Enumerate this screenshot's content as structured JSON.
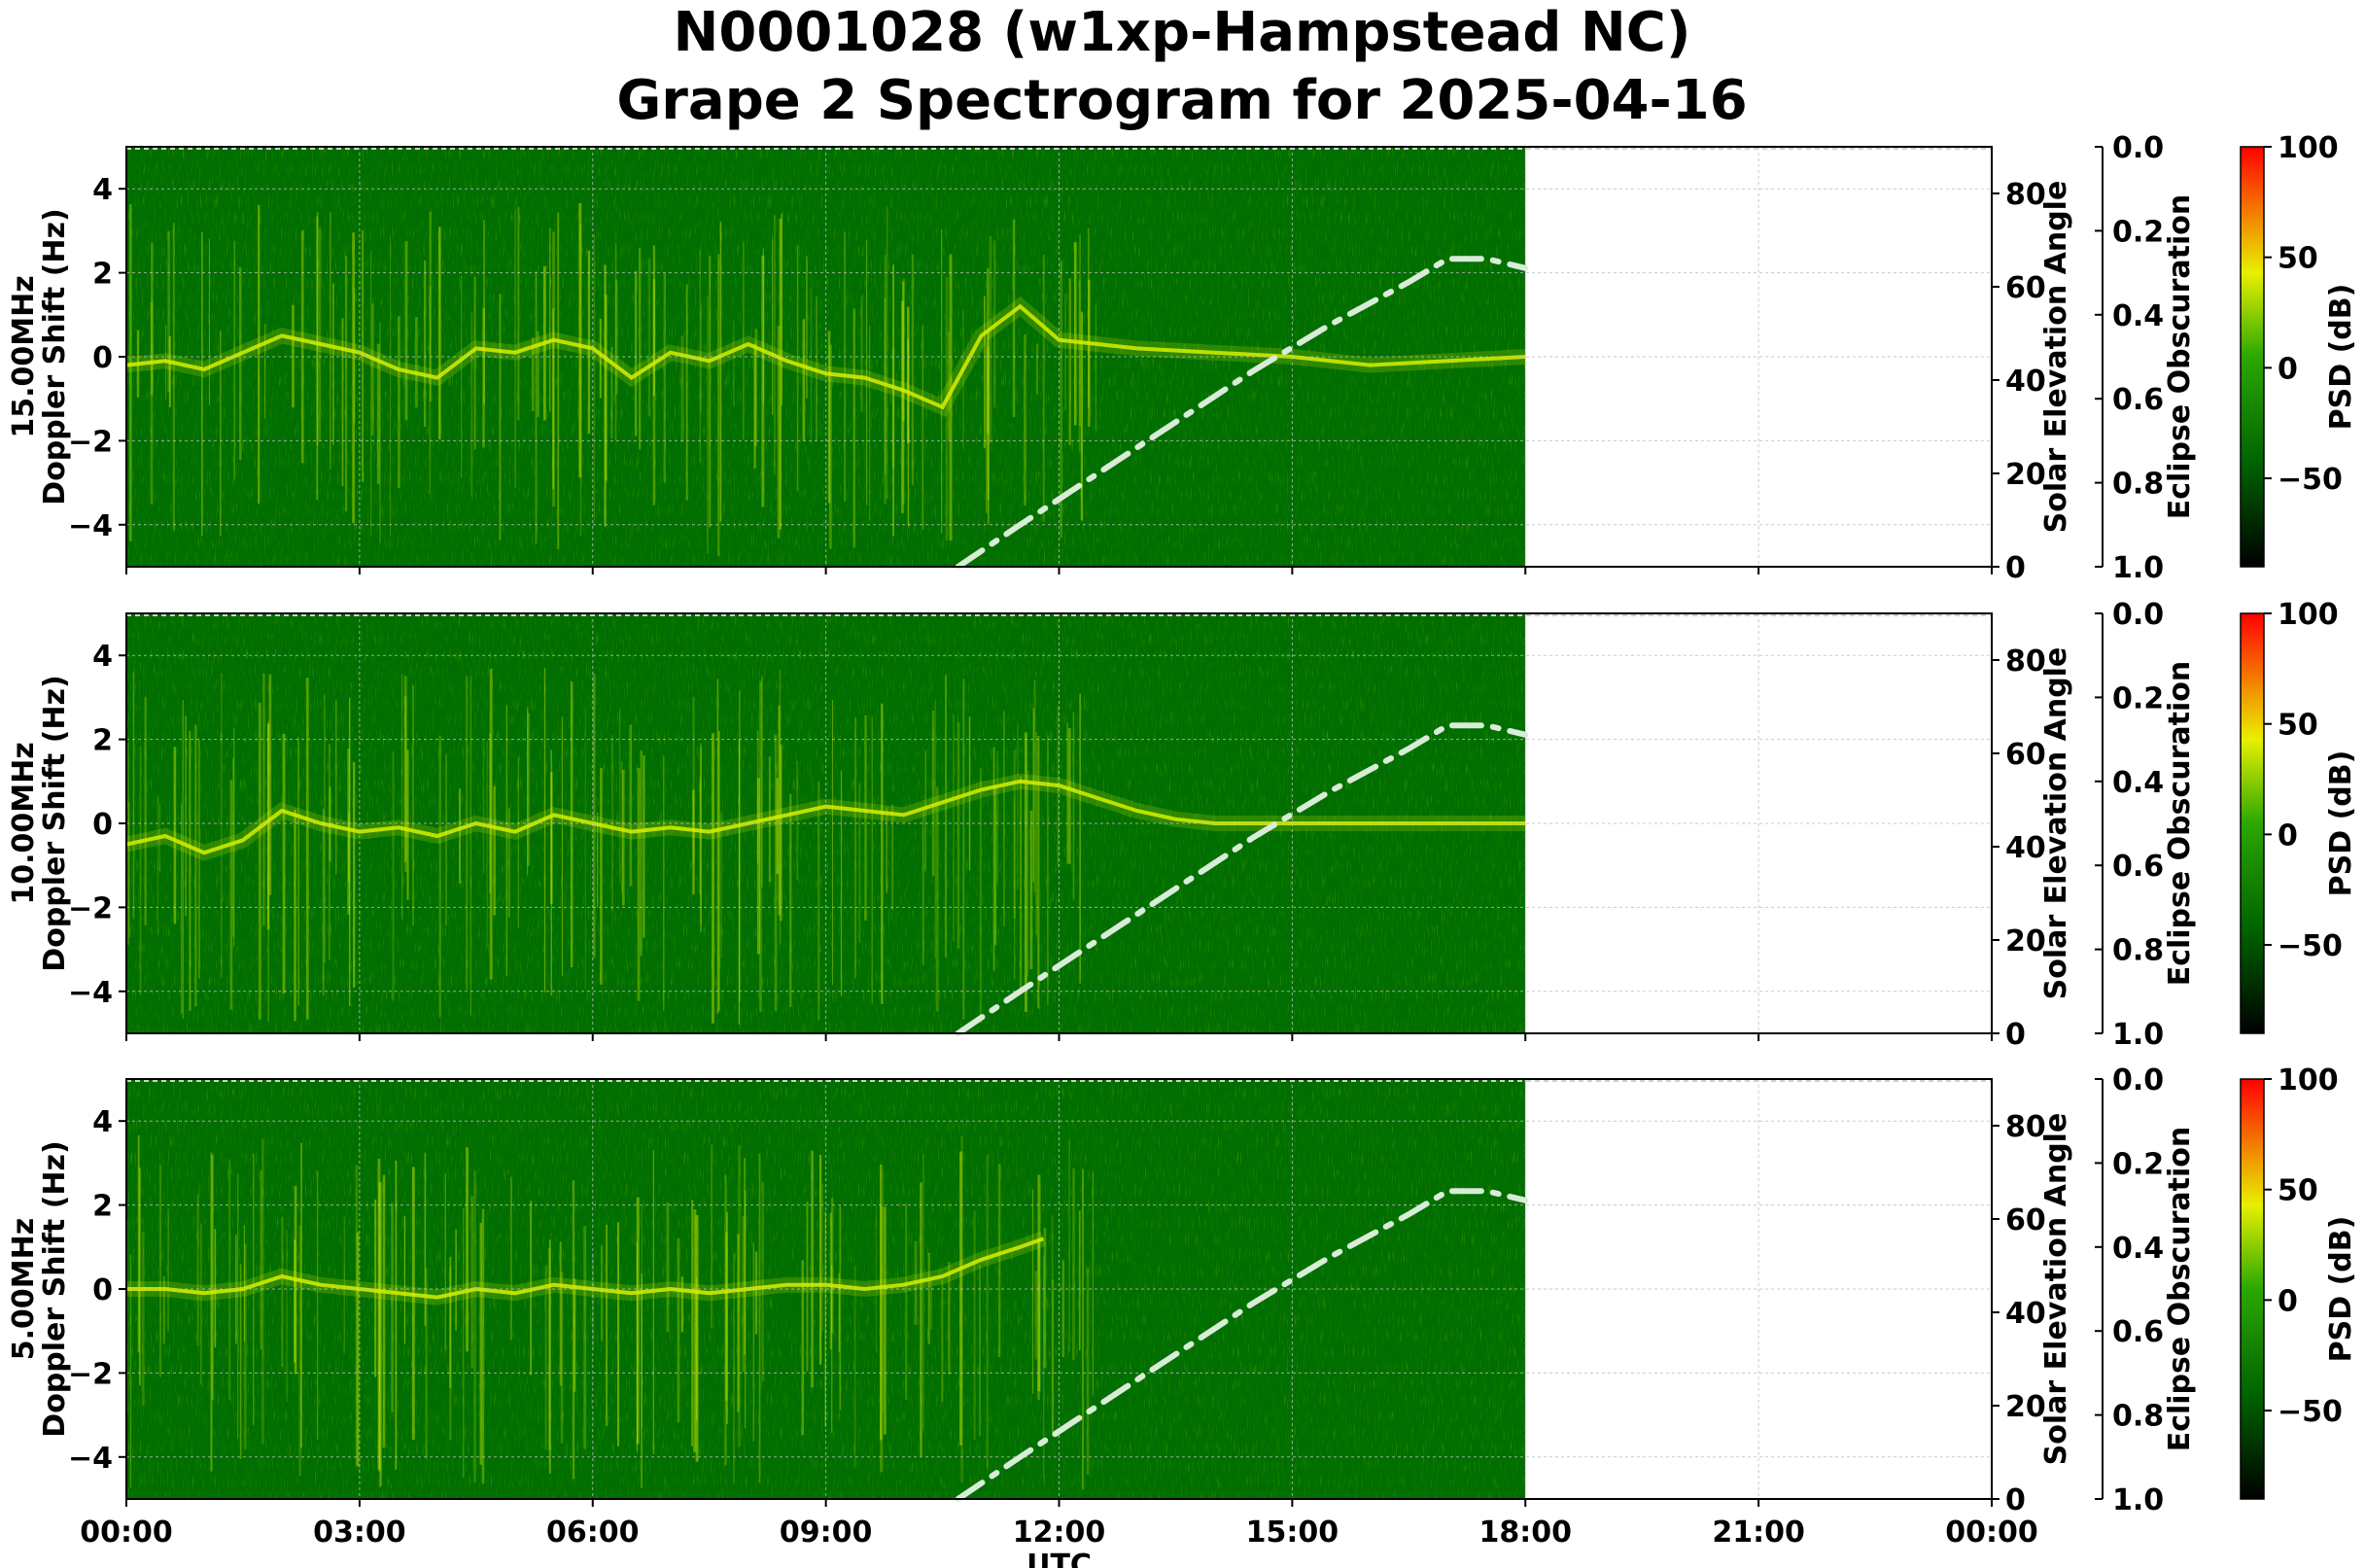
{
  "title_line1": "N0001028 (w1xp-Hampstead NC)",
  "title_line2": "Grape 2 Spectrogram for 2025-04-16",
  "colors": {
    "background": "#006e00",
    "signal": "#d8f000",
    "solar_curve": "#d8ecd8",
    "colorbar_stops": [
      "#000000",
      "#006400",
      "#28b400",
      "#f0f000",
      "#ff0000"
    ]
  },
  "chart_data": [
    {
      "type": "heatmap",
      "panel_label": "15.00MHz",
      "ylabel": "Doppler Shift (Hz)",
      "xlabel": "",
      "xlim": [
        "00:00",
        "24:00"
      ],
      "ylim": [
        -5,
        5
      ],
      "xticks": [
        "00:00",
        "03:00",
        "06:00",
        "09:00",
        "12:00",
        "15:00",
        "18:00",
        "21:00",
        "00:00"
      ],
      "yticks": [
        "−4",
        "−2",
        "0",
        "2",
        "4"
      ],
      "data_end_hour": 18,
      "doppler_trace": [
        [
          0,
          -0.2
        ],
        [
          0.5,
          -0.1
        ],
        [
          1,
          -0.3
        ],
        [
          1.5,
          0.1
        ],
        [
          2,
          0.5
        ],
        [
          2.5,
          0.3
        ],
        [
          3,
          0.1
        ],
        [
          3.5,
          -0.3
        ],
        [
          4,
          -0.5
        ],
        [
          4.5,
          0.2
        ],
        [
          5,
          0.1
        ],
        [
          5.5,
          0.4
        ],
        [
          6,
          0.2
        ],
        [
          6.5,
          -0.5
        ],
        [
          7,
          0.1
        ],
        [
          7.5,
          -0.1
        ],
        [
          8,
          0.3
        ],
        [
          8.5,
          -0.1
        ],
        [
          9,
          -0.4
        ],
        [
          9.5,
          -0.5
        ],
        [
          10,
          -0.8
        ],
        [
          10.5,
          -1.2
        ],
        [
          11,
          0.5
        ],
        [
          11.5,
          1.2
        ],
        [
          12,
          0.4
        ],
        [
          12.5,
          0.3
        ],
        [
          13,
          0.2
        ],
        [
          14,
          0.1
        ],
        [
          15,
          0.0
        ],
        [
          16,
          -0.2
        ],
        [
          17,
          -0.1
        ],
        [
          18,
          0.0
        ]
      ],
      "secondary_axes": {
        "solar_elevation_label": "Solar Elevation Angle",
        "solar_elevation_ticks": [
          "0",
          "20",
          "40",
          "60",
          "80"
        ],
        "eclipse_label": "Eclipse Obscuration",
        "eclipse_ticks": [
          "0.0",
          "0.2",
          "0.4",
          "0.6",
          "0.8",
          "1.0"
        ],
        "colorbar_label": "PSD (dB)",
        "colorbar_ticks": [
          "100",
          "50",
          "0",
          "−50"
        ]
      },
      "solar_elevation": [
        [
          10.7,
          0
        ],
        [
          11.5,
          9
        ],
        [
          12.5,
          20
        ],
        [
          13.5,
          31
        ],
        [
          14.5,
          42
        ],
        [
          15.5,
          52
        ],
        [
          16.5,
          61
        ],
        [
          17,
          66
        ],
        [
          17.5,
          66
        ],
        [
          18,
          64
        ]
      ]
    },
    {
      "type": "heatmap",
      "panel_label": "10.00MHz",
      "ylabel": "Doppler Shift (Hz)",
      "xlabel": "",
      "xlim": [
        "00:00",
        "24:00"
      ],
      "ylim": [
        -5,
        5
      ],
      "xticks": [
        "00:00",
        "03:00",
        "06:00",
        "09:00",
        "12:00",
        "15:00",
        "18:00",
        "21:00",
        "00:00"
      ],
      "yticks": [
        "−4",
        "−2",
        "0",
        "2",
        "4"
      ],
      "data_end_hour": 18,
      "doppler_trace": [
        [
          0,
          -0.5
        ],
        [
          0.5,
          -0.3
        ],
        [
          1,
          -0.7
        ],
        [
          1.5,
          -0.4
        ],
        [
          2,
          0.3
        ],
        [
          2.5,
          0.0
        ],
        [
          3,
          -0.2
        ],
        [
          3.5,
          -0.1
        ],
        [
          4,
          -0.3
        ],
        [
          4.5,
          0.0
        ],
        [
          5,
          -0.2
        ],
        [
          5.5,
          0.2
        ],
        [
          6,
          0.0
        ],
        [
          6.5,
          -0.2
        ],
        [
          7,
          -0.1
        ],
        [
          7.5,
          -0.2
        ],
        [
          8,
          0.0
        ],
        [
          8.5,
          0.2
        ],
        [
          9,
          0.4
        ],
        [
          9.5,
          0.3
        ],
        [
          10,
          0.2
        ],
        [
          10.5,
          0.5
        ],
        [
          11,
          0.8
        ],
        [
          11.5,
          1.0
        ],
        [
          12,
          0.9
        ],
        [
          12.5,
          0.6
        ],
        [
          13,
          0.3
        ],
        [
          13.5,
          0.1
        ],
        [
          14,
          0.0
        ],
        [
          18,
          0.0
        ]
      ],
      "secondary_axes": {
        "solar_elevation_label": "Solar Elevation Angle",
        "solar_elevation_ticks": [
          "0",
          "20",
          "40",
          "60",
          "80"
        ],
        "eclipse_label": "Eclipse Obscuration",
        "eclipse_ticks": [
          "0.0",
          "0.2",
          "0.4",
          "0.6",
          "0.8",
          "1.0"
        ],
        "colorbar_label": "PSD (dB)",
        "colorbar_ticks": [
          "100",
          "50",
          "0",
          "−50"
        ]
      },
      "solar_elevation": [
        [
          10.7,
          0
        ],
        [
          11.5,
          9
        ],
        [
          12.5,
          20
        ],
        [
          13.5,
          31
        ],
        [
          14.5,
          42
        ],
        [
          15.5,
          52
        ],
        [
          16.5,
          61
        ],
        [
          17,
          66
        ],
        [
          17.5,
          66
        ],
        [
          18,
          64
        ]
      ]
    },
    {
      "type": "heatmap",
      "panel_label": "5.00MHz",
      "ylabel": "Doppler Shift (Hz)",
      "xlabel": "UTC",
      "xlim": [
        "00:00",
        "24:00"
      ],
      "ylim": [
        -5,
        5
      ],
      "xticks": [
        "00:00",
        "03:00",
        "06:00",
        "09:00",
        "12:00",
        "15:00",
        "18:00",
        "21:00",
        "00:00"
      ],
      "yticks": [
        "−4",
        "−2",
        "0",
        "2",
        "4"
      ],
      "data_end_hour": 18,
      "doppler_trace": [
        [
          0,
          0.0
        ],
        [
          0.5,
          0.0
        ],
        [
          1,
          -0.1
        ],
        [
          1.5,
          0.0
        ],
        [
          2,
          0.3
        ],
        [
          2.5,
          0.1
        ],
        [
          3,
          0.0
        ],
        [
          3.5,
          -0.1
        ],
        [
          4,
          -0.2
        ],
        [
          4.5,
          0.0
        ],
        [
          5,
          -0.1
        ],
        [
          5.5,
          0.1
        ],
        [
          6,
          0.0
        ],
        [
          6.5,
          -0.1
        ],
        [
          7,
          0.0
        ],
        [
          7.5,
          -0.1
        ],
        [
          8,
          0.0
        ],
        [
          8.5,
          0.1
        ],
        [
          9,
          0.1
        ],
        [
          9.5,
          0.0
        ],
        [
          10,
          0.1
        ],
        [
          10.5,
          0.3
        ],
        [
          11,
          0.7
        ],
        [
          11.5,
          1.0
        ],
        [
          11.8,
          1.2
        ]
      ],
      "secondary_axes": {
        "solar_elevation_label": "Solar Elevation Angle",
        "solar_elevation_ticks": [
          "0",
          "20",
          "40",
          "60",
          "80"
        ],
        "eclipse_label": "Eclipse Obscuration",
        "eclipse_ticks": [
          "0.0",
          "0.2",
          "0.4",
          "0.6",
          "0.8",
          "1.0"
        ],
        "colorbar_label": "PSD (dB)",
        "colorbar_ticks": [
          "100",
          "50",
          "0",
          "−50"
        ]
      },
      "solar_elevation": [
        [
          10.7,
          0
        ],
        [
          11.5,
          9
        ],
        [
          12.5,
          20
        ],
        [
          13.5,
          31
        ],
        [
          14.5,
          42
        ],
        [
          15.5,
          52
        ],
        [
          16.5,
          61
        ],
        [
          17,
          66
        ],
        [
          17.5,
          66
        ],
        [
          18,
          64
        ]
      ]
    }
  ]
}
